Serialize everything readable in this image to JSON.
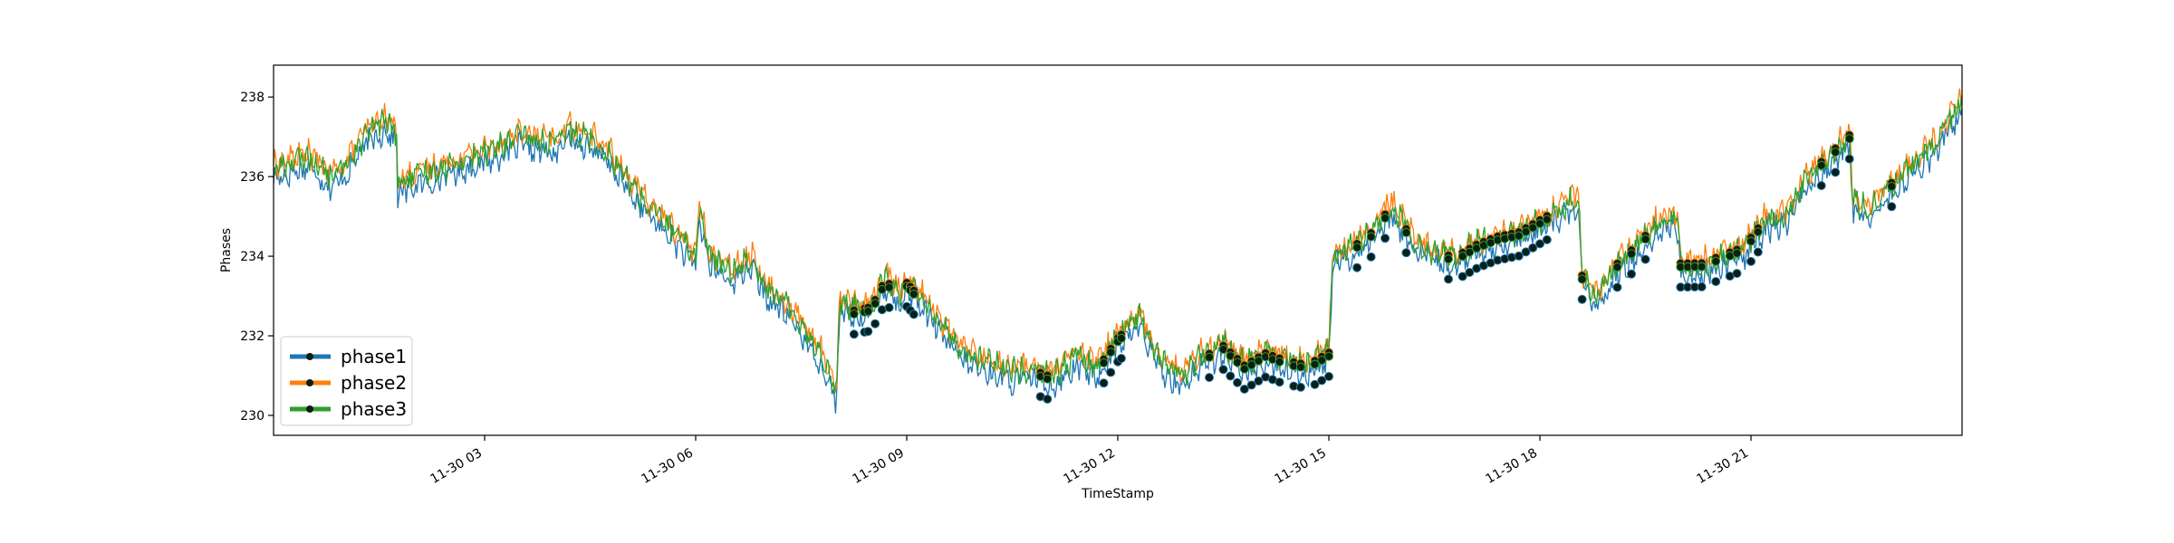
{
  "chart_data": {
    "type": "line",
    "xlabel": "TimeStamp",
    "ylabel": "Phases",
    "xlim": [
      "2023-11-30 00:00",
      "2023-11-30 24:00"
    ],
    "ylim": [
      229.5,
      238.8
    ],
    "x_ticks": [
      {
        "hour": 3,
        "label": "11-30 03"
      },
      {
        "hour": 6,
        "label": "11-30 06"
      },
      {
        "hour": 9,
        "label": "11-30 09"
      },
      {
        "hour": 12,
        "label": "11-30 12"
      },
      {
        "hour": 15,
        "label": "11-30 15"
      },
      {
        "hour": 18,
        "label": "11-30 18"
      },
      {
        "hour": 21,
        "label": "11-30 21"
      }
    ],
    "y_ticks": [
      {
        "value": 230,
        "label": "230"
      },
      {
        "value": 232,
        "label": "232"
      },
      {
        "value": 234,
        "label": "234"
      },
      {
        "value": 236,
        "label": "236"
      },
      {
        "value": 238,
        "label": "238"
      }
    ],
    "grid": false,
    "legend_position": "lower-left",
    "marker_color": "#0b1f14",
    "series": [
      {
        "name": "phase1",
        "color": "#1f77b4",
        "offset": -0.25
      },
      {
        "name": "phase2",
        "color": "#ff7f0e",
        "offset": 0.1
      },
      {
        "name": "phase3",
        "color": "#2ca02c",
        "offset": 0.0
      }
    ],
    "base_profile": {
      "hours": [
        0.0,
        0.5,
        0.8,
        1.0,
        1.2,
        1.4,
        1.6,
        1.75,
        1.76,
        2.0,
        2.5,
        3.0,
        3.5,
        4.0,
        4.2,
        4.5,
        4.8,
        5.0,
        5.3,
        5.6,
        5.8,
        6.0,
        6.05,
        6.2,
        6.5,
        6.8,
        7.0,
        7.2,
        7.4,
        7.6,
        7.8,
        8.0,
        8.05,
        8.2,
        8.5,
        8.7,
        8.9,
        9.0,
        9.3,
        9.6,
        9.9,
        10.2,
        10.5,
        10.8,
        11.1,
        11.4,
        11.7,
        12.0,
        12.3,
        12.6,
        12.9,
        13.2,
        13.5,
        13.8,
        14.1,
        14.4,
        14.7,
        15.0,
        15.05,
        15.3,
        15.6,
        15.9,
        16.2,
        16.5,
        16.8,
        17.1,
        17.4,
        17.7,
        18.0,
        18.3,
        18.55,
        18.6,
        18.8,
        19.1,
        19.4,
        19.7,
        19.95,
        20.0,
        20.3,
        20.6,
        20.9,
        21.2,
        21.5,
        21.8,
        22.1,
        22.4,
        22.45,
        22.7,
        23.0,
        23.3,
        23.6,
        24.0
      ],
      "voltages": [
        236.2,
        236.5,
        236.0,
        236.2,
        236.8,
        237.2,
        237.4,
        237.1,
        235.8,
        236.0,
        236.3,
        236.6,
        237.0,
        236.8,
        237.2,
        237.0,
        236.5,
        236.0,
        235.3,
        234.8,
        234.4,
        234.0,
        235.2,
        234.0,
        233.6,
        234.0,
        233.2,
        232.9,
        232.6,
        232.0,
        231.5,
        230.6,
        232.9,
        232.7,
        232.8,
        233.5,
        233.0,
        233.4,
        232.8,
        232.0,
        231.5,
        231.3,
        231.1,
        231.2,
        231.0,
        231.5,
        231.2,
        232.0,
        232.5,
        231.4,
        231.0,
        231.5,
        231.8,
        231.3,
        231.6,
        231.4,
        231.3,
        231.6,
        234.0,
        234.2,
        234.6,
        235.3,
        234.4,
        234.1,
        234.0,
        234.3,
        234.5,
        234.6,
        234.9,
        235.2,
        235.5,
        233.5,
        232.9,
        233.8,
        234.3,
        234.9,
        235.0,
        233.8,
        233.8,
        234.0,
        234.2,
        234.9,
        235.1,
        236.0,
        236.5,
        237.0,
        235.4,
        235.2,
        235.8,
        236.3,
        236.8,
        237.9
      ]
    },
    "marker_hours": [
      8.25,
      8.4,
      8.45,
      8.55,
      8.65,
      8.75,
      9.0,
      9.05,
      9.1,
      10.9,
      11.0,
      11.8,
      11.9,
      12.0,
      12.05,
      13.3,
      13.5,
      13.6,
      13.7,
      13.8,
      13.9,
      14.0,
      14.1,
      14.2,
      14.3,
      14.5,
      14.6,
      14.8,
      14.9,
      15.0,
      15.4,
      15.6,
      15.8,
      16.1,
      16.7,
      16.9,
      17.0,
      17.1,
      17.2,
      17.3,
      17.4,
      17.5,
      17.6,
      17.7,
      17.8,
      17.9,
      18.0,
      18.1,
      18.6,
      19.1,
      19.3,
      19.5,
      20.0,
      20.1,
      20.2,
      20.3,
      20.5,
      20.7,
      20.8,
      21.0,
      21.1,
      22.0,
      22.2,
      22.4,
      23.0
    ]
  }
}
